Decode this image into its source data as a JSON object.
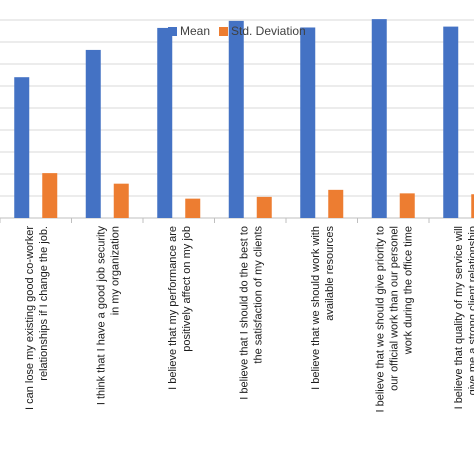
{
  "chart_data": {
    "type": "bar",
    "title": "",
    "xlabel": "",
    "ylabel": "",
    "ylim": [
      0,
      4.5
    ],
    "grid": true,
    "legend": "top-center",
    "colors": {
      "mean": "#4472C4",
      "std": "#ED7D31",
      "grid": "#d9d9d9",
      "axis": "#bfbfbf"
    },
    "categories": [
      [
        "I can lose my existing good co-worker",
        "relationships if I change the job."
      ],
      [
        "I think that I have a good job security",
        "in my organization"
      ],
      [
        "I believe that my performance are",
        "positively affect on my job"
      ],
      [
        "I believe that I should do the best to",
        "the satisfaction of my clients"
      ],
      [
        "I believe that we should work with",
        "available resources"
      ],
      [
        "I believe that we should give priority to",
        "our official work than our personel",
        "work during the office time"
      ],
      [
        "I believe that quality of my service will",
        "give me a strong client relationship"
      ]
    ],
    "series": [
      {
        "name": "Mean",
        "values": [
          3.2,
          3.82,
          4.32,
          4.48,
          4.33,
          4.52,
          4.35
        ]
      },
      {
        "name": "Std. Deviation",
        "values": [
          1.02,
          0.78,
          0.44,
          0.48,
          0.64,
          0.56,
          0.54
        ]
      }
    ]
  }
}
